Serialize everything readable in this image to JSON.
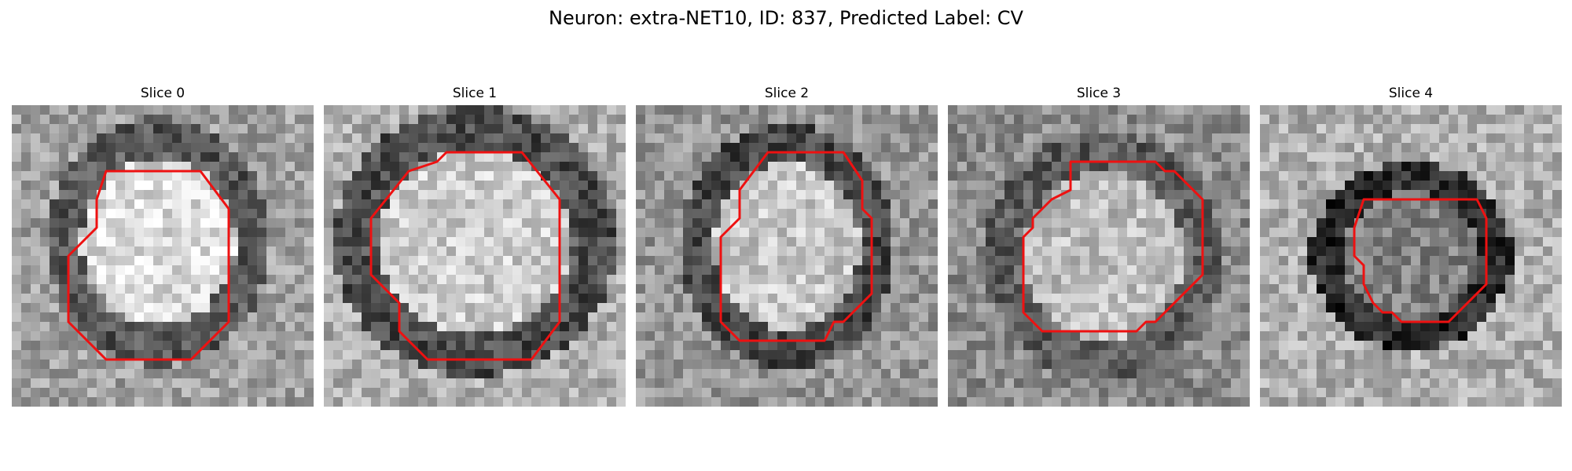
{
  "figure": {
    "title": "Neuron: extra-NET10, ID: 837, Predicted Label: CV"
  },
  "panels": [
    {
      "title": "Slice 0",
      "image": "grayscale-microscopy-slice",
      "contour": "red-outline"
    },
    {
      "title": "Slice 1",
      "image": "grayscale-microscopy-slice",
      "contour": "red-outline"
    },
    {
      "title": "Slice 2",
      "image": "grayscale-microscopy-slice",
      "contour": "red-outline"
    },
    {
      "title": "Slice 3",
      "image": "grayscale-microscopy-slice",
      "contour": "red-outline"
    },
    {
      "title": "Slice 4",
      "image": "grayscale-microscopy-slice",
      "contour": "red-outline"
    }
  ],
  "colors": {
    "contour": "#ee1111",
    "background": "#ffffff"
  }
}
